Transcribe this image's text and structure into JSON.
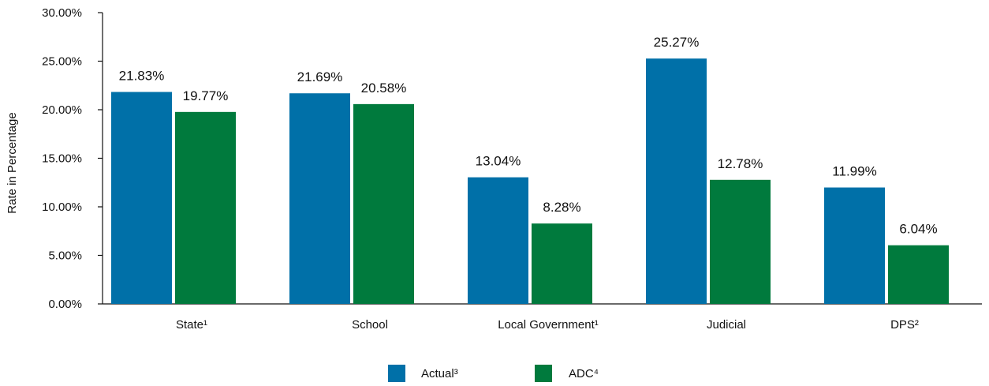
{
  "chart_data": {
    "type": "bar",
    "categories": [
      "State¹",
      "School",
      "Local Government¹",
      "Judicial",
      "DPS²"
    ],
    "series": [
      {
        "name": "Actual³",
        "color": "#0070A8",
        "values": [
          21.83,
          21.69,
          13.04,
          25.27,
          11.99
        ],
        "labels": [
          "21.83%",
          "21.69%",
          "13.04%",
          "25.27%",
          "11.99%"
        ]
      },
      {
        "name": "ADC⁴",
        "color": "#007A3D",
        "values": [
          19.77,
          20.58,
          8.28,
          12.78,
          6.04
        ],
        "labels": [
          "19.77%",
          "20.58%",
          "8.28%",
          "12.78%",
          "6.04%"
        ]
      }
    ],
    "title": "",
    "xlabel": "",
    "ylabel": "Rate in Percentage",
    "ylim": [
      0,
      30
    ],
    "yticks": [
      0,
      5,
      10,
      15,
      20,
      25,
      30
    ],
    "ytick_labels": [
      "0.00%",
      "5.00%",
      "10.00%",
      "15.00%",
      "20.00%",
      "25.00%",
      "30.00%"
    ],
    "grid": false,
    "legend": "bottom-center"
  }
}
